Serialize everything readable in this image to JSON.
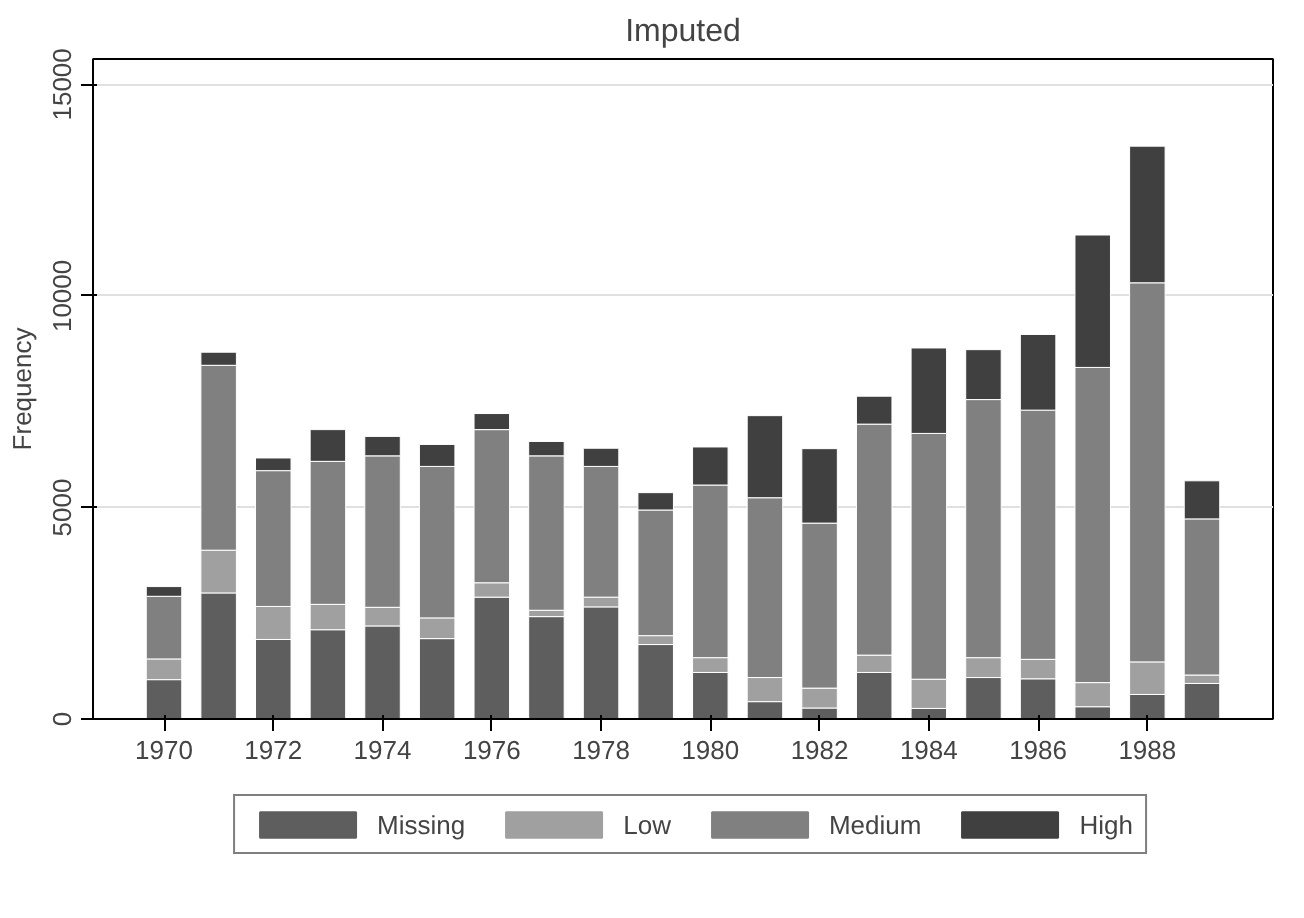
{
  "chart_data": {
    "type": "bar",
    "title": "Imputed",
    "ylabel": "Frequency",
    "stacked": true,
    "x": [
      1970,
      1971,
      1972,
      1973,
      1974,
      1975,
      1976,
      1977,
      1978,
      1979,
      1980,
      1981,
      1982,
      1983,
      1984,
      1985,
      1986,
      1987,
      1988,
      1989
    ],
    "series": [
      {
        "name": "Missing",
        "color": "#5e5e5e",
        "values": [
          930,
          2980,
          1880,
          2110,
          2200,
          1900,
          2880,
          2420,
          2650,
          1760,
          1100,
          410,
          260,
          1100,
          250,
          980,
          950,
          290,
          580,
          840
        ]
      },
      {
        "name": "Low",
        "color": "#a0a0a0",
        "values": [
          490,
          1010,
          780,
          600,
          440,
          490,
          340,
          150,
          230,
          210,
          350,
          570,
          470,
          410,
          690,
          470,
          460,
          570,
          770,
          200
        ]
      },
      {
        "name": "Medium",
        "color": "#808080",
        "values": [
          1480,
          4370,
          3210,
          3380,
          3580,
          3580,
          3620,
          3650,
          3090,
          2970,
          4080,
          4250,
          3900,
          5460,
          5810,
          6100,
          5890,
          7450,
          8960,
          3690
        ]
      },
      {
        "name": "High",
        "color": "#404040",
        "values": [
          230,
          310,
          300,
          750,
          460,
          520,
          380,
          340,
          430,
          410,
          900,
          1940,
          1760,
          660,
          2020,
          1180,
          1790,
          3130,
          3230,
          900
        ]
      }
    ],
    "xlim": [
      1968.7,
      1990.3
    ],
    "xticks": [
      1970,
      1972,
      1974,
      1976,
      1978,
      1980,
      1982,
      1984,
      1986,
      1988
    ],
    "ylim": [
      0,
      15600
    ],
    "yticks": [
      0,
      5000,
      10000,
      15000
    ],
    "grid": "y",
    "legend": "bottom"
  }
}
